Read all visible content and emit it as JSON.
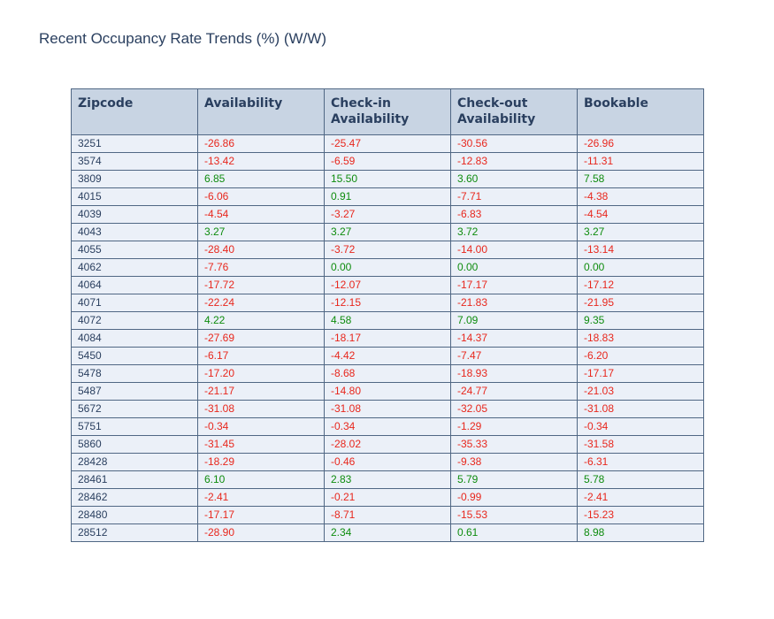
{
  "chart_data": {
    "type": "table",
    "title": "Recent Occupancy Rate Trends (%) (W/W)",
    "columns": [
      "Zipcode",
      "Availability",
      "Check-in Availability",
      "Check-out Availability",
      "Bookable"
    ],
    "colors": {
      "header_bg": "#c8d4e3",
      "cell_bg": "#ebf0f8",
      "border": "#506784",
      "negative": "#e8271d",
      "positive": "#0e8c0e",
      "text": "#2a3f5f"
    },
    "rows": [
      [
        "3251",
        "-26.86",
        "-25.47",
        "-30.56",
        "-26.96"
      ],
      [
        "3574",
        "-13.42",
        "-6.59",
        "-12.83",
        "-11.31"
      ],
      [
        "3809",
        "6.85",
        "15.50",
        "3.60",
        "7.58"
      ],
      [
        "4015",
        "-6.06",
        "0.91",
        "-7.71",
        "-4.38"
      ],
      [
        "4039",
        "-4.54",
        "-3.27",
        "-6.83",
        "-4.54"
      ],
      [
        "4043",
        "3.27",
        "3.27",
        "3.72",
        "3.27"
      ],
      [
        "4055",
        "-28.40",
        "-3.72",
        "-14.00",
        "-13.14"
      ],
      [
        "4062",
        "-7.76",
        "0.00",
        "0.00",
        "0.00"
      ],
      [
        "4064",
        "-17.72",
        "-12.07",
        "-17.17",
        "-17.12"
      ],
      [
        "4071",
        "-22.24",
        "-12.15",
        "-21.83",
        "-21.95"
      ],
      [
        "4072",
        "4.22",
        "4.58",
        "7.09",
        "9.35"
      ],
      [
        "4084",
        "-27.69",
        "-18.17",
        "-14.37",
        "-18.83"
      ],
      [
        "5450",
        "-6.17",
        "-4.42",
        "-7.47",
        "-6.20"
      ],
      [
        "5478",
        "-17.20",
        "-8.68",
        "-18.93",
        "-17.17"
      ],
      [
        "5487",
        "-21.17",
        "-14.80",
        "-24.77",
        "-21.03"
      ],
      [
        "5672",
        "-31.08",
        "-31.08",
        "-32.05",
        "-31.08"
      ],
      [
        "5751",
        "-0.34",
        "-0.34",
        "-1.29",
        "-0.34"
      ],
      [
        "5860",
        "-31.45",
        "-28.02",
        "-35.33",
        "-31.58"
      ],
      [
        "28428",
        "-18.29",
        "-0.46",
        "-9.38",
        "-6.31"
      ],
      [
        "28461",
        "6.10",
        "2.83",
        "5.79",
        "5.78"
      ],
      [
        "28462",
        "-2.41",
        "-0.21",
        "-0.99",
        "-2.41"
      ],
      [
        "28480",
        "-17.17",
        "-8.71",
        "-15.53",
        "-15.23"
      ],
      [
        "28512",
        "-28.90",
        "2.34",
        "0.61",
        "8.98"
      ]
    ]
  }
}
